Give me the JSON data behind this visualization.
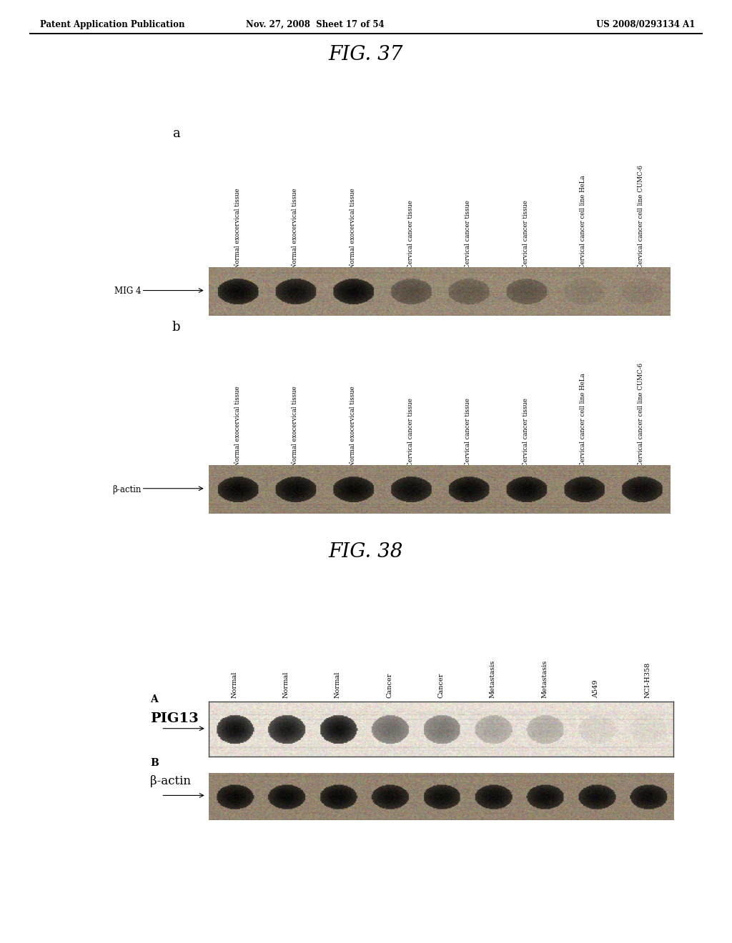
{
  "header_left": "Patent Application Publication",
  "header_mid": "Nov. 27, 2008  Sheet 17 of 54",
  "header_right": "US 2008/0293134 A1",
  "fig37_title": "FIG. 37",
  "fig38_title": "FIG. 38",
  "fig37_panel_a_label": "a",
  "fig37_panel_b_label": "b",
  "fig38_panel_a_label": "A",
  "fig38_panel_b_label": "B",
  "fig37_lane_labels": [
    "Normal exocervical tissue",
    "Normal exocervical tissue",
    "Normal exocervical tissue",
    "Cervical cancer tissue",
    "Cervical cancer tissue",
    "Cervical cancer tissue",
    "Cervical cancer cell line HeLa",
    "Cervical cancer cell line CUMC-6"
  ],
  "fig38_lane_labels": [
    "Normal",
    "Normal",
    "Normal",
    "Cancer",
    "Cancer",
    "Metastasis",
    "Metastasis",
    "A549",
    "NCI-H358"
  ],
  "fig37a_marker_label": "MIG 4",
  "fig37b_marker_label": "β-actin",
  "fig38a_marker_label": "PIG13",
  "fig38b_marker_label": "β-actin",
  "fig37a_intensities": [
    1.0,
    0.95,
    1.0,
    0.45,
    0.35,
    0.4,
    0.1,
    0.08
  ],
  "fig37b_intensities": [
    1.0,
    1.0,
    1.0,
    0.97,
    1.0,
    1.0,
    0.97,
    0.97
  ],
  "fig38a_intensities": [
    1.0,
    0.95,
    1.0,
    0.55,
    0.5,
    0.28,
    0.25,
    0.07,
    0.05
  ],
  "fig38b_intensities": [
    1.0,
    1.0,
    1.0,
    0.97,
    0.97,
    0.97,
    0.97,
    0.97,
    0.97
  ],
  "background_color": "#ffffff",
  "text_color": "#000000"
}
